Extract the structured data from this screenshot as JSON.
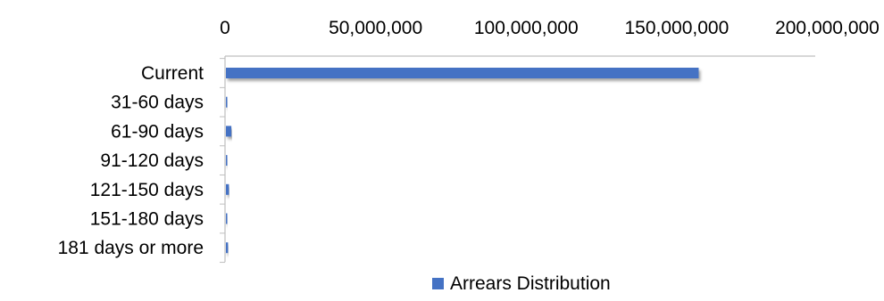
{
  "chart_data": {
    "type": "bar",
    "orientation": "horizontal",
    "categories": [
      "Current",
      "31-60 days",
      "61-90 days",
      "91-120 days",
      "121-150 days",
      "151-180 days",
      "181 days or more"
    ],
    "series": [
      {
        "name": "Arrears Distribution",
        "values": [
          157000000,
          100000,
          1800000,
          100000,
          1000000,
          300000,
          700000
        ],
        "color": "#4472C4"
      }
    ],
    "x_ticks": [
      "0",
      "50,000,000",
      "100,000,000",
      "150,000,000",
      "200,000,000"
    ],
    "x_range": [
      0,
      196000000
    ],
    "x_tick_values": [
      0,
      50000000,
      100000000,
      150000000,
      200000000
    ],
    "x_axis_position": "top",
    "grid": false,
    "legend": {
      "position": "bottom",
      "entries": [
        "Arrears Distribution"
      ]
    },
    "colors": {
      "bar": "#4472C4",
      "bar_shadow": "#bfbfbf",
      "axis": "#bfbfbf"
    }
  }
}
